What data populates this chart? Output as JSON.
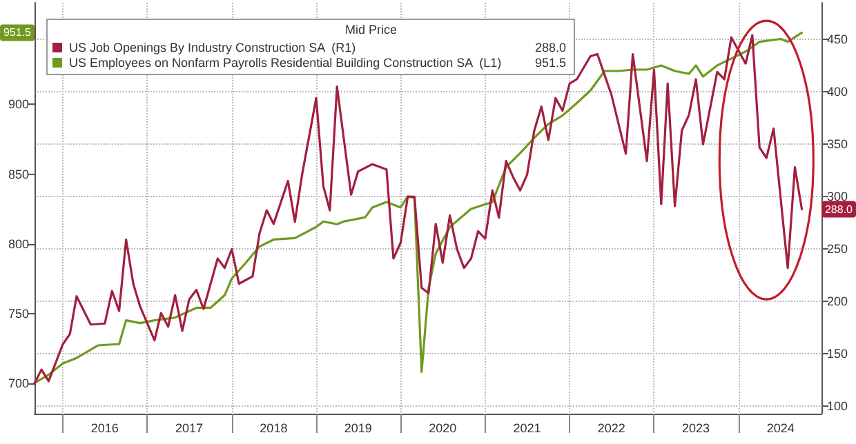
{
  "chart_data": {
    "type": "line",
    "legend_title": "Mid Price",
    "series": [
      {
        "name": "US Job Openings By Industry Construction SA  (R1)",
        "color": "#a31f3f",
        "axis": "y2",
        "x": [
          "2015-09",
          "2015-10",
          "2015-11",
          "2016-01",
          "2016-02",
          "2016-03",
          "2016-05",
          "2016-07",
          "2016-08",
          "2016-09",
          "2016-10",
          "2016-11",
          "2016-12",
          "2017-02",
          "2017-03",
          "2017-04",
          "2017-05",
          "2017-06",
          "2017-07",
          "2017-08",
          "2017-09",
          "2017-11",
          "2017-12",
          "2018-01",
          "2018-02",
          "2018-04",
          "2018-05",
          "2018-06",
          "2018-07",
          "2018-09",
          "2018-10",
          "2018-11",
          "2019-01",
          "2019-02",
          "2019-03",
          "2019-04",
          "2019-06",
          "2019-07",
          "2019-09",
          "2019-11",
          "2019-12",
          "2020-01",
          "2020-02",
          "2020-03",
          "2020-04",
          "2020-05",
          "2020-06",
          "2020-07",
          "2020-08",
          "2020-09",
          "2020-10",
          "2020-11",
          "2020-12",
          "2021-01",
          "2021-02",
          "2021-03",
          "2021-04",
          "2021-05",
          "2021-06",
          "2021-07",
          "2021-08",
          "2021-09",
          "2021-10",
          "2021-11",
          "2021-12",
          "2022-01",
          "2022-02",
          "2022-04",
          "2022-05",
          "2022-07",
          "2022-09",
          "2022-10",
          "2022-12",
          "2023-01",
          "2023-02",
          "2023-03",
          "2023-04",
          "2023-05",
          "2023-06",
          "2023-07",
          "2023-08",
          "2023-10",
          "2023-11",
          "2023-12",
          "2024-02",
          "2024-03",
          "2024-04",
          "2024-05",
          "2024-06",
          "2024-08",
          "2024-09",
          "2024-10"
        ],
        "values": [
          122,
          135,
          124,
          159,
          169,
          205,
          178,
          179,
          210,
          191,
          259,
          217,
          195,
          163,
          189,
          176,
          206,
          172,
          202,
          211,
          193,
          241,
          232,
          250,
          217,
          224,
          265,
          287,
          274,
          315,
          276,
          321,
          394,
          310,
          287,
          405,
          302,
          324,
          331,
          326,
          241,
          256,
          300,
          300,
          213,
          208,
          274,
          237,
          282,
          250,
          232,
          241,
          267,
          260,
          306,
          280,
          334,
          319,
          306,
          321,
          363,
          386,
          354,
          394,
          382,
          408,
          412,
          434,
          436,
          397,
          341,
          436,
          334,
          421,
          293,
          408,
          291,
          363,
          378,
          412,
          350,
          419,
          412,
          452,
          427,
          454,
          347,
          337,
          365,
          232,
          328,
          288
        ]
      },
      {
        "name": "US Employees on Nonfarm Payrolls Residential Building Construction SA  (L1)",
        "color": "#6f9a1f",
        "x": [
          "2015-09",
          "2015-11",
          "2016-01",
          "2016-03",
          "2016-04",
          "2016-06",
          "2016-09",
          "2016-10",
          "2016-12",
          "2017-02",
          "2017-05",
          "2017-08",
          "2017-10",
          "2017-12",
          "2018-01",
          "2018-03",
          "2018-05",
          "2018-07",
          "2018-10",
          "2019-01",
          "2019-02",
          "2019-04",
          "2019-05",
          "2019-08",
          "2019-09",
          "2019-11",
          "2020-01",
          "2020-02",
          "2020-03",
          "2020-04",
          "2020-05",
          "2020-06",
          "2020-08",
          "2020-11",
          "2021-02",
          "2021-04",
          "2021-06",
          "2021-08",
          "2021-10",
          "2021-12",
          "2022-02",
          "2022-04",
          "2022-06",
          "2022-08",
          "2022-10",
          "2022-12",
          "2023-02",
          "2023-04",
          "2023-06",
          "2023-07",
          "2023-08",
          "2023-10",
          "2023-12",
          "2024-02",
          "2024-04",
          "2024-07",
          "2024-08",
          "2024-10"
        ],
        "values": [
          700,
          706,
          714,
          718,
          721,
          727,
          728,
          745,
          743,
          745,
          747,
          754,
          754,
          763,
          775,
          786,
          798,
          803,
          804,
          812,
          816,
          814,
          816,
          819,
          826,
          830,
          826,
          834,
          833,
          708,
          768,
          793,
          812,
          825,
          830,
          855,
          865,
          876,
          886,
          892,
          901,
          910,
          924,
          924,
          925,
          925,
          928,
          924,
          922,
          928,
          920,
          928,
          933,
          938,
          945,
          947,
          945,
          951.5
        ]
      }
    ],
    "annotations": [
      "288.0",
      "951.5"
    ],
    "xlim": [
      "2015-09-01",
      "2024-12-25"
    ],
    "xticks": [
      {
        "value": "2016-01-01",
        "label": null
      },
      {
        "value": "2016-07-01",
        "label": "2016"
      },
      {
        "value": "2017-01-01",
        "label": null
      },
      {
        "value": "2017-07-01",
        "label": "2017"
      },
      {
        "value": "2018-01-01",
        "label": null
      },
      {
        "value": "2018-07-01",
        "label": "2018"
      },
      {
        "value": "2019-01-01",
        "label": null
      },
      {
        "value": "2019-07-01",
        "label": "2019"
      },
      {
        "value": "2020-01-01",
        "label": null
      },
      {
        "value": "2020-07-01",
        "label": "2020"
      },
      {
        "value": "2021-01-01",
        "label": null
      },
      {
        "value": "2021-07-01",
        "label": "2021"
      },
      {
        "value": "2022-01-01",
        "label": null
      },
      {
        "value": "2022-07-01",
        "label": "2022"
      },
      {
        "value": "2023-01-01",
        "label": null
      },
      {
        "value": "2023-07-01",
        "label": "2023"
      },
      {
        "value": "2024-01-01",
        "label": null
      },
      {
        "value": "2024-07-01",
        "label": "2024"
      }
    ],
    "ylim": [
      678,
      973
    ],
    "yticks": [
      700,
      750,
      800,
      850,
      900
    ],
    "y2lim": [
      93,
      485
    ],
    "y2ticks": [
      100,
      150,
      200,
      250,
      300,
      350,
      400,
      450
    ],
    "grid": true,
    "legend": "top left",
    "marker": "none",
    "line_style": "solid"
  }
}
